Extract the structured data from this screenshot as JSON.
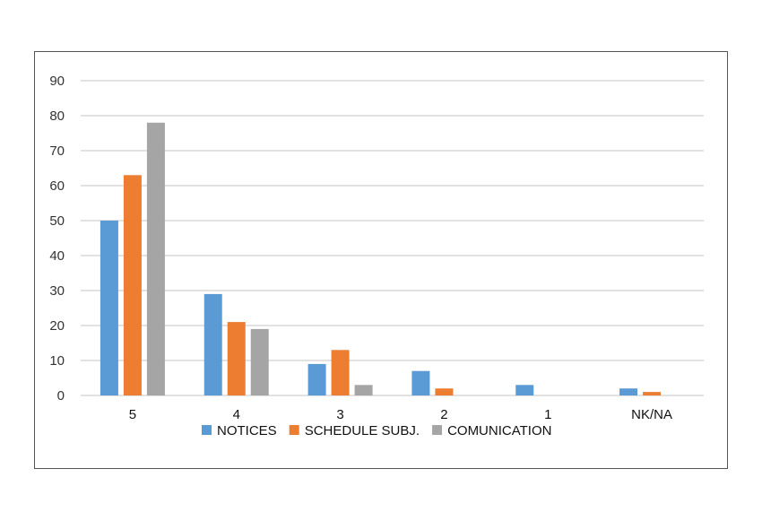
{
  "chart_data": {
    "type": "bar",
    "title": "",
    "xlabel": "",
    "ylabel": "",
    "categories": [
      "5",
      "4",
      "3",
      "2",
      "1",
      "NK/NA"
    ],
    "series": [
      {
        "name": "NOTICES",
        "color": "#5b9bd5",
        "values": [
          50,
          29,
          9,
          7,
          3,
          2
        ]
      },
      {
        "name": "SCHEDULE SUBJ.",
        "color": "#ed7d31",
        "values": [
          63,
          21,
          13,
          2,
          0,
          1
        ]
      },
      {
        "name": "COMUNICATION",
        "color": "#a5a5a5",
        "values": [
          78,
          19,
          3,
          0,
          0,
          0
        ]
      }
    ],
    "ylim": [
      0,
      90
    ],
    "yticks": [
      0,
      10,
      20,
      30,
      40,
      50,
      60,
      70,
      80,
      90
    ],
    "grid": true,
    "legend_position": "bottom",
    "gridline_color": "#d9d9d9"
  }
}
